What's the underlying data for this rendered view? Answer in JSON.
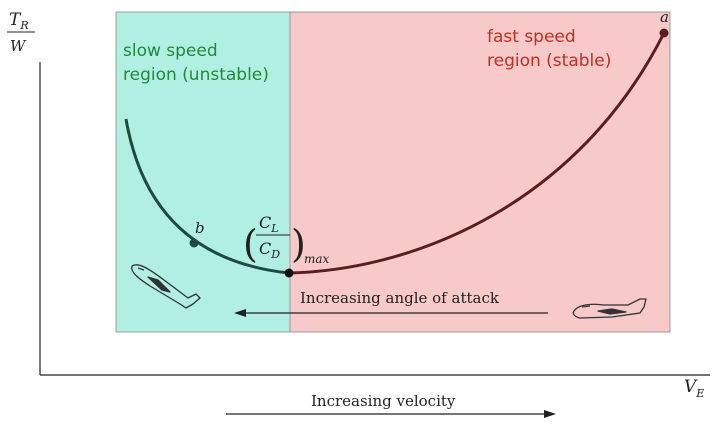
{
  "axes": {
    "y_label_top": "T",
    "y_label_top_sub": "R",
    "y_label_bottom": "W",
    "x_label": "V",
    "x_label_sub": "E"
  },
  "regions": {
    "slow": {
      "line1": "slow speed",
      "line2": "region (unstable)",
      "fill_color": "#b2efe3",
      "text_color": "#1f8a3a"
    },
    "fast": {
      "line1": "fast speed",
      "line2": "region (stable)",
      "fill_color": "#f7c9c9",
      "text_color": "#c0301e"
    }
  },
  "points": {
    "a": "a",
    "b": "b",
    "min_num": "C",
    "min_num_sub": "L",
    "min_den": "C",
    "min_den_sub": "D",
    "min_sub": "max"
  },
  "arrows": {
    "angle_of_attack": "Increasing angle of attack",
    "velocity": "Increasing velocity"
  },
  "icons": {
    "high_aoa_aircraft": "aircraft-nose-up-icon",
    "cruise_aircraft": "aircraft-level-icon"
  },
  "colors": {
    "curve_slow": "#1f4a40",
    "curve_fast": "#5a1e1e",
    "axis": "#222222"
  }
}
